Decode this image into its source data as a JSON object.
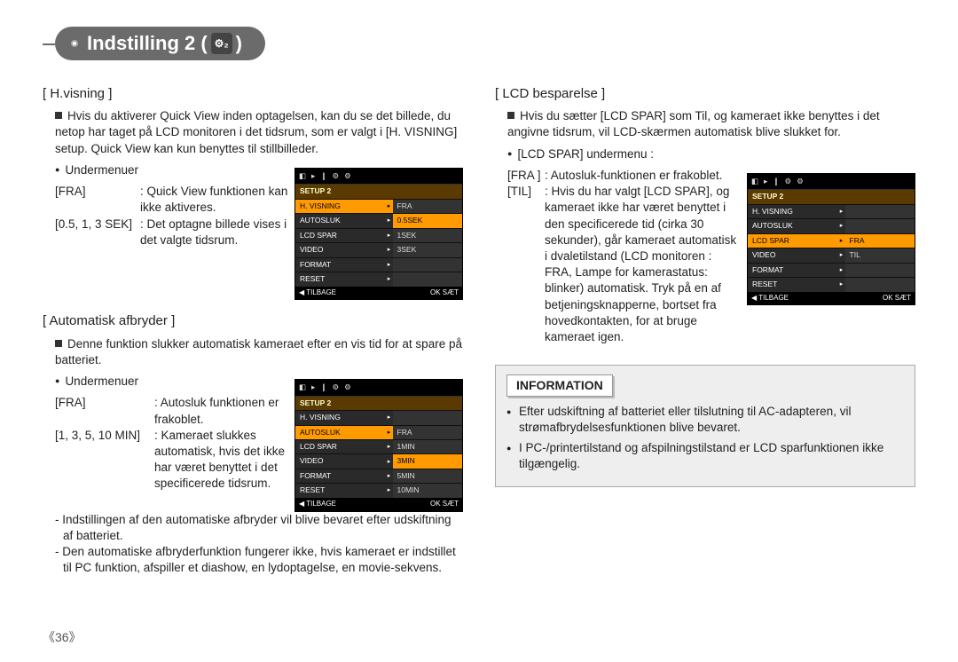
{
  "title": "Indstilling 2 (",
  "title_suffix": ")",
  "gear_label": "⚙₂",
  "page_number": "《36》",
  "left": {
    "sec1": {
      "heading": "[ H.visning ]",
      "intro": "Hvis du aktiverer Quick View inden optagelsen, kan du se det billede, du netop har taget på LCD monitoren i det tidsrum, som er valgt i [H. VISNING] setup. Quick View kan kun benyttes til stillbilleder.",
      "submenu_label": "Undermenuer",
      "rows": [
        {
          "lbl": "[FRA]",
          "txt": ": Quick View funktionen kan ikke aktiveres."
        },
        {
          "lbl": "[0.5, 1, 3 SEK]",
          "txt": ": Det optagne billede vises i det valgte tidsrum."
        }
      ],
      "lcd": {
        "hdr": "SETUP 2",
        "rows": [
          {
            "l": "H. VISNING",
            "r": "FRA",
            "lsel": true
          },
          {
            "l": "AUTOSLUK",
            "r": "0.5SEK",
            "rsel": true
          },
          {
            "l": "LCD SPAR",
            "r": "1SEK"
          },
          {
            "l": "VIDEO",
            "r": "3SEK"
          },
          {
            "l": "FORMAT",
            "r": ""
          },
          {
            "l": "RESET",
            "r": ""
          }
        ],
        "footer_back": "◀  TILBAGE",
        "footer_ok": "OK  SÆT"
      }
    },
    "sec2": {
      "heading": "[ Automatisk afbryder ]",
      "intro": "Denne funktion slukker automatisk kameraet efter en vis tid for at spare på batteriet.",
      "submenu_label": "Undermenuer",
      "rows": [
        {
          "lbl": "[FRA]",
          "txt": ": Autosluk funktionen er frakoblet."
        },
        {
          "lbl": "[1, 3, 5, 10 MIN]",
          "txt": ": Kameraet slukkes automatisk, hvis det ikke har været benyttet i det specificerede tidsrum."
        }
      ],
      "notes": [
        "- Indstillingen af den automatiske afbryder vil blive bevaret efter udskiftning af batteriet.",
        "- Den automatiske afbryderfunktion fungerer ikke, hvis kameraet er indstillet til PC funktion, afspiller et diashow, en lydoptagelse, en movie-sekvens."
      ],
      "lcd": {
        "hdr": "SETUP 2",
        "rows": [
          {
            "l": "H. VISNING",
            "r": ""
          },
          {
            "l": "AUTOSLUK",
            "r": "FRA",
            "lsel": true
          },
          {
            "l": "LCD SPAR",
            "r": "1MIN"
          },
          {
            "l": "VIDEO",
            "r": "3MIN",
            "rsel": true
          },
          {
            "l": "FORMAT",
            "r": "5MIN"
          },
          {
            "l": "RESET",
            "r": "10MIN"
          }
        ],
        "footer_back": "◀  TILBAGE",
        "footer_ok": "OK  SÆT"
      }
    }
  },
  "right": {
    "sec1": {
      "heading": "[ LCD besparelse ]",
      "intro": "Hvis du sætter [LCD SPAR] som Til, og kameraet ikke benyttes i det angivne tidsrum, vil LCD-skærmen automatisk blive slukket for.",
      "submenu_label": "[LCD SPAR] undermenu :",
      "rows": [
        {
          "lbl": "[FRA ]",
          "txt": ": Autosluk-funktionen er frakoblet."
        },
        {
          "lbl": "[TIL]",
          "txt": ": Hvis du har valgt [LCD SPAR], og kameraet ikke har været benyttet i den specificerede tid (cirka 30 sekunder), går kameraet automatisk i dvaletilstand (LCD monitoren : FRA, Lampe for kamerastatus: blinker) automatisk. Tryk på en af betjeningsknapperne, bortset fra hovedkontakten, for at bruge kameraet igen."
        }
      ],
      "lcd": {
        "hdr": "SETUP 2",
        "rows": [
          {
            "l": "H. VISNING",
            "r": ""
          },
          {
            "l": "AUTOSLUK",
            "r": ""
          },
          {
            "l": "LCD SPAR",
            "r": "FRA",
            "lsel": true,
            "rsel": true
          },
          {
            "l": "VIDEO",
            "r": "TIL"
          },
          {
            "l": "FORMAT",
            "r": ""
          },
          {
            "l": "RESET",
            "r": ""
          }
        ],
        "footer_back": "◀  TILBAGE",
        "footer_ok": "OK  SÆT"
      }
    },
    "info": {
      "title": "INFORMATION",
      "items": [
        "Efter udskiftning af batteriet eller tilslutning til AC-adapteren, vil strømafbrydelsesfunktionen blive bevaret.",
        "I PC-/printertilstand og afspilningstilstand er LCD sparfunktionen ikke tilgængelig."
      ]
    }
  }
}
